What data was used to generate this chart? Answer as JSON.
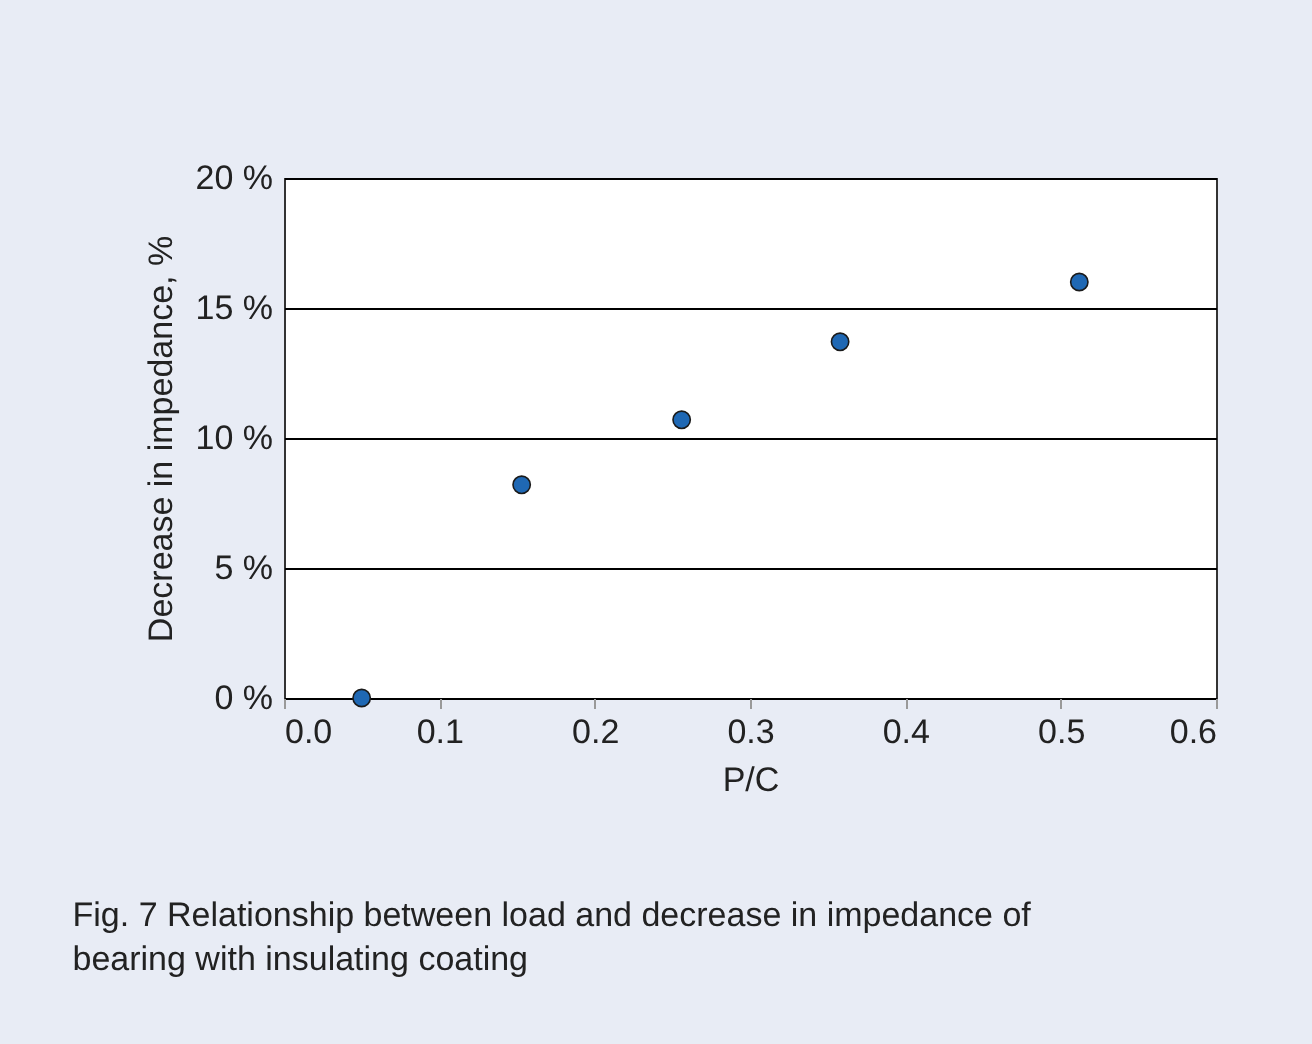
{
  "chart_data": {
    "type": "scatter",
    "xlabel": "P/C",
    "ylabel": "Decrease in impedance, %",
    "x": [
      0.05,
      0.153,
      0.256,
      0.358,
      0.512
    ],
    "series": [
      {
        "color": "#1f68b4",
        "values": [
          0,
          8.2,
          10.7,
          13.7,
          16.0
        ]
      }
    ],
    "xlim": [
      0,
      0.6
    ],
    "xticks": [
      {
        "value": 0,
        "label": "0.0"
      },
      0.1,
      0.2,
      0.3,
      0.4,
      0.5,
      0.6
    ],
    "ylim": [
      0,
      20
    ],
    "yticks": [
      {
        "value": 0,
        "label": "0 %"
      },
      {
        "value": 5,
        "label": "5 %"
      },
      {
        "value": 10,
        "label": "10 %"
      },
      {
        "value": 15,
        "label": "15 %"
      },
      {
        "value": 20,
        "label": "20 %"
      }
    ],
    "grid": "y",
    "marker": "circle",
    "annotations": [
      "Fig. 7  Relationship between load and decrease in impedance of bearing with insulating coating"
    ]
  }
}
